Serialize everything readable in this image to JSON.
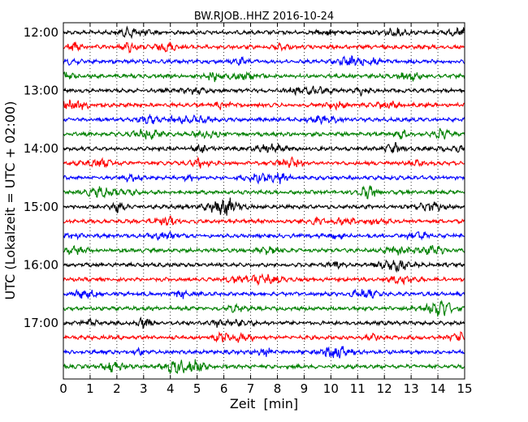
{
  "chart_data": {
    "type": "line",
    "title": "BW.RJOB..HHZ 2016-10-24",
    "xlabel": "Zeit  [min]",
    "ylabel": "UTC (Lokalzeit = UTC + 02:00)",
    "xlim": [
      0,
      15
    ],
    "x_ticks": [
      "0",
      "1",
      "2",
      "3",
      "4",
      "5",
      "6",
      "7",
      "8",
      "9",
      "10",
      "11",
      "12",
      "13",
      "14",
      "15"
    ],
    "y_tick_labels": [
      "12:00",
      "13:00",
      "14:00",
      "15:00",
      "16:00",
      "17:00"
    ],
    "trace_interval_min": 15,
    "trace_count": 24,
    "trace_colors": [
      "#000000",
      "#ff0000",
      "#0000ff",
      "#008000"
    ],
    "grid_x": true,
    "grid_style": "dotted"
  }
}
